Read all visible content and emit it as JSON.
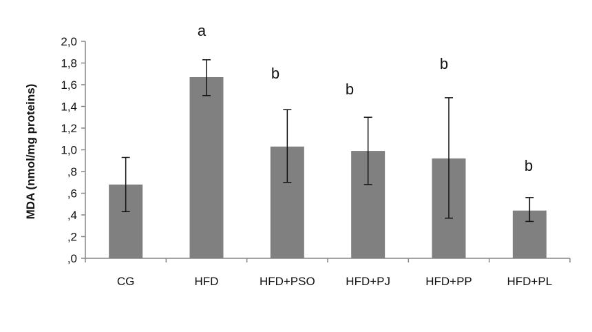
{
  "chart_data": {
    "type": "bar",
    "title": "",
    "xlabel": "",
    "ylabel": "MDA (nmol/mg proteins)",
    "ylim": [
      0,
      2.0
    ],
    "yticks": [
      ",0",
      ",2",
      ",4",
      ",6",
      ",8",
      "1,0",
      "1,2",
      "1,4",
      "1,6",
      "1,8",
      "2,0"
    ],
    "grid": false,
    "categories": [
      "CG",
      "HFD",
      "HFD+PSO",
      "HFD+PJ",
      "HFD+PP",
      "HFD+PL"
    ],
    "values": [
      0.68,
      1.67,
      1.03,
      0.99,
      0.92,
      0.44
    ],
    "error_low": [
      0.43,
      1.5,
      0.7,
      0.68,
      0.37,
      0.34
    ],
    "error_high": [
      0.93,
      1.83,
      1.37,
      1.3,
      1.48,
      0.56
    ],
    "significance": [
      "",
      "a",
      "b",
      "b",
      "b",
      "b"
    ],
    "colors": {
      "bar": "#808080",
      "axis": "#868686",
      "error": "#111111",
      "text": "#111111"
    }
  }
}
